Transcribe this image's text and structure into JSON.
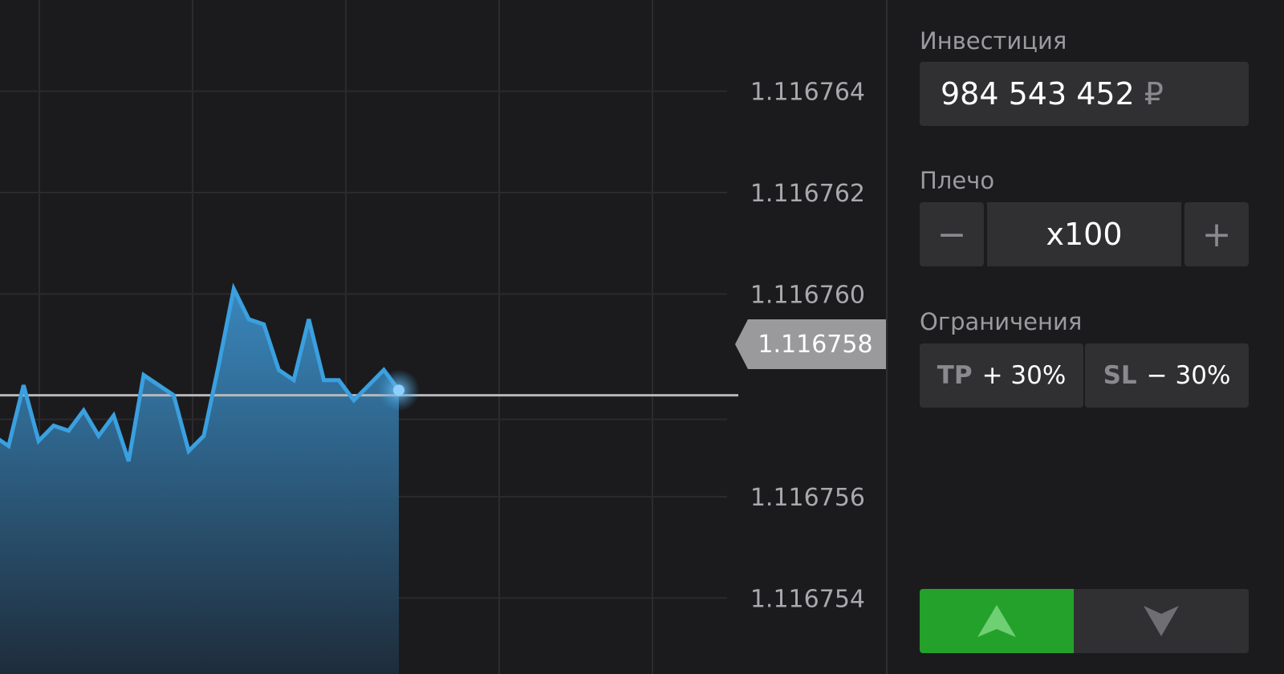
{
  "chart_data": {
    "type": "area",
    "y_ticks": [
      "1.116764",
      "1.116762",
      "1.116760",
      "1.116756",
      "1.116754"
    ],
    "current_price": "1.116758",
    "ylim": [
      1.1167525,
      1.1167658
    ],
    "grid": true,
    "series": [
      {
        "values": [
          1.1167572,
          1.116757,
          1.1167582,
          1.1167571,
          1.1167574,
          1.1167573,
          1.1167577,
          1.1167572,
          1.1167576,
          1.1167567,
          1.1167584,
          1.1167582,
          1.116758,
          1.1167569,
          1.1167572,
          1.1167586,
          1.1167601,
          1.1167595,
          1.1167594,
          1.1167585,
          1.1167583,
          1.1167595,
          1.1167583,
          1.1167583,
          1.1167579,
          1.1167582,
          1.1167585,
          1.1167581
        ]
      }
    ],
    "line_color": "#3aa0e0",
    "fill_color_top": "#3a8cc4",
    "fill_color_bottom": "#1e2c3a"
  },
  "sidebar": {
    "investment_label": "Инвестиция",
    "investment_value": "984 543 452",
    "currency_symbol": "₽",
    "leverage_label": "Плечо",
    "leverage_minus": "−",
    "leverage_value": "x100",
    "leverage_plus": "+",
    "limits_label": "Ограничения",
    "tp_key": "TP",
    "tp_value": "+ 30%",
    "sl_key": "SL",
    "sl_value": "− 30%",
    "buy_icon": "arrow-up-icon",
    "sell_icon": "arrow-down-icon",
    "buy_color": "#24a12b"
  }
}
